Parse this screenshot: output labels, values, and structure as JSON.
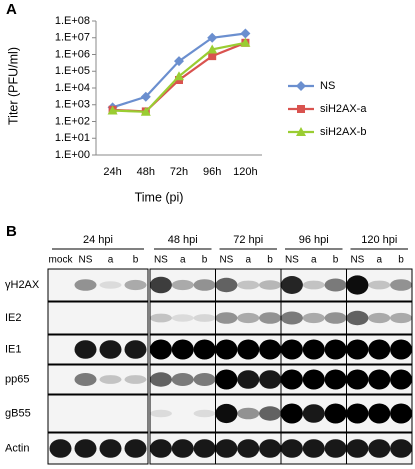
{
  "panel_labels": {
    "a": "A",
    "b": "B"
  },
  "chart_data": {
    "type": "line",
    "x_label": "Time (pi)",
    "y_label": "Titer (PFU/ml)",
    "categories": [
      "24h",
      "48h",
      "72h",
      "96h",
      "120h"
    ],
    "log_scale": true,
    "ylim": [
      1,
      100000000
    ],
    "yticks": [
      {
        "value": 1,
        "label": "1.E+00"
      },
      {
        "value": 10,
        "label": "1.E+01"
      },
      {
        "value": 100,
        "label": "1.E+02"
      },
      {
        "value": 1000,
        "label": "1.E+03"
      },
      {
        "value": 10000,
        "label": "1.E+04"
      },
      {
        "value": 100000,
        "label": "1.E+05"
      },
      {
        "value": 1000000,
        "label": "1.E+06"
      },
      {
        "value": 10000000,
        "label": "1.E+07"
      },
      {
        "value": 100000000,
        "label": "1.E+08"
      }
    ],
    "legend": "right",
    "series": [
      {
        "name": "NS",
        "color": "#6b8fcf",
        "marker": "diamond",
        "values": [
          700,
          3000,
          400000,
          10000000,
          18000000
        ]
      },
      {
        "name": "siH2AX-a",
        "color": "#d9534f",
        "marker": "square",
        "values": [
          500,
          400,
          30000,
          800000,
          5000000
        ]
      },
      {
        "name": "siH2AX-b",
        "color": "#9acd32",
        "marker": "triangle",
        "values": [
          450,
          380,
          50000,
          2000000,
          5000000
        ]
      }
    ]
  },
  "blot": {
    "groups": [
      {
        "label": "24 hpi",
        "lanes": [
          "mock",
          "NS",
          "a",
          "b"
        ]
      },
      {
        "label": "48 hpi",
        "lanes": [
          "NS",
          "a",
          "b"
        ]
      },
      {
        "label": "72 hpi",
        "lanes": [
          "NS",
          "a",
          "b"
        ]
      },
      {
        "label": "96 hpi",
        "lanes": [
          "NS",
          "a",
          "b"
        ]
      },
      {
        "label": "120 hpi",
        "lanes": [
          "NS",
          "a",
          "b"
        ]
      }
    ],
    "rows": [
      "γH2AX",
      "IE2",
      "IE1",
      "pp65",
      "gB55",
      "Actin"
    ]
  }
}
